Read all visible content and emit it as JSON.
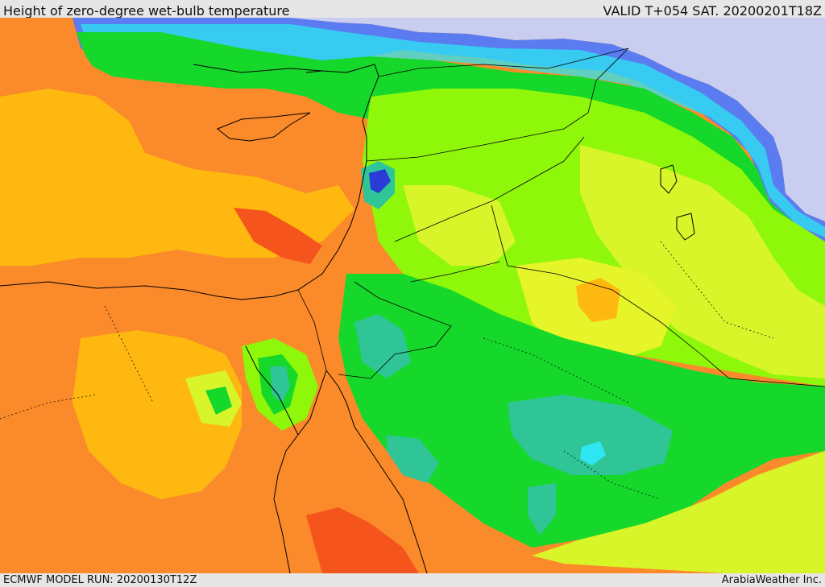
{
  "header": {
    "title": "Height of zero-degree wet-bulb temperature",
    "valid": "VALID T+054 SAT. 20200201T18Z"
  },
  "footer": {
    "model_run": "ECMWF MODEL RUN: 20200130T12Z",
    "credit": "ArabiaWeather Inc."
  },
  "colors": {
    "no_data": "#c9cdf0",
    "deep_blue": "#2a3bd6",
    "blue": "#5a7cf0",
    "cyan": "#2ee6f2",
    "teal": "#2fc596",
    "green": "#16d82a",
    "lime": "#8ef70a",
    "yellow_green": "#d8f52a",
    "yellow": "#f2f230",
    "amber": "#ffb810",
    "orange": "#fb8a2a",
    "red_orange": "#f5551c",
    "coastline": "#000000"
  }
}
